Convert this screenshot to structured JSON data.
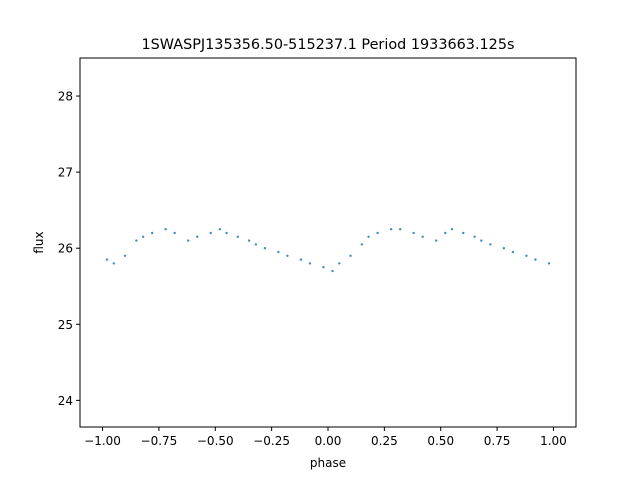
{
  "chart_data": {
    "type": "scatter",
    "title": "1SWASPJ135356.50-515237.1 Period 1933663.125s",
    "xlabel": "phase",
    "ylabel": "flux",
    "xlim": [
      -1.1,
      1.1
    ],
    "ylim": [
      23.65,
      28.5
    ],
    "xticks": [
      -1.0,
      -0.75,
      -0.5,
      -0.25,
      0.0,
      0.25,
      0.5,
      0.75,
      1.0
    ],
    "xtick_labels": [
      "−1.00",
      "−0.75",
      "−0.50",
      "−0.25",
      "0.00",
      "0.25",
      "0.50",
      "0.75",
      "1.00"
    ],
    "yticks": [
      24,
      25,
      26,
      27,
      28
    ],
    "ytick_labels": [
      "24",
      "25",
      "26",
      "27",
      "28"
    ],
    "grid": false,
    "marker_color": "#1f77b4",
    "series": [
      {
        "x": [
          -0.98,
          -0.95,
          -0.9,
          -0.85,
          -0.82,
          -0.78,
          -0.72,
          -0.68,
          -0.62,
          -0.58,
          -0.52,
          -0.48,
          -0.45,
          -0.4,
          -0.35,
          -0.32,
          -0.28,
          -0.22,
          -0.18,
          -0.12,
          -0.08,
          -0.02,
          0.02,
          0.05,
          0.1,
          0.15,
          0.18,
          0.22,
          0.28,
          0.32,
          0.38,
          0.42,
          0.48,
          0.52,
          0.55,
          0.6,
          0.65,
          0.68,
          0.72,
          0.78,
          0.82,
          0.88,
          0.92,
          0.98
        ],
        "y": [
          25.85,
          25.8,
          25.9,
          26.1,
          26.15,
          26.2,
          26.25,
          26.2,
          26.1,
          26.15,
          26.2,
          26.25,
          26.2,
          26.15,
          26.1,
          26.05,
          26.0,
          25.95,
          25.9,
          25.85,
          25.8,
          25.75,
          25.7,
          25.8,
          25.9,
          26.05,
          26.15,
          26.2,
          26.25,
          26.25,
          26.2,
          26.15,
          26.1,
          26.2,
          26.25,
          26.2,
          26.15,
          26.1,
          26.05,
          26.0,
          25.95,
          25.9,
          25.85,
          25.8
        ]
      }
    ]
  }
}
